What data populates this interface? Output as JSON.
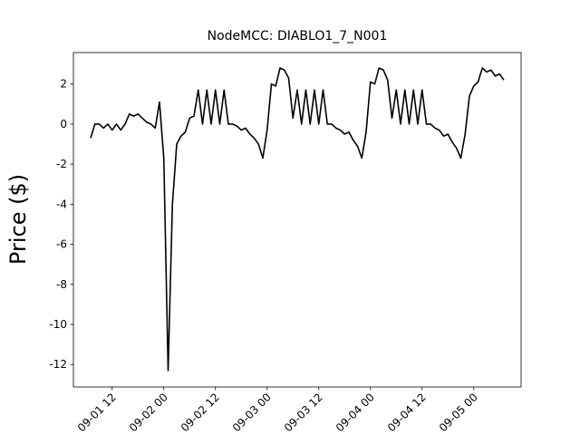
{
  "chart_data": {
    "type": "line",
    "title": "NodeMCC: DIABLO1_7_N001",
    "y_label": "Price ($)",
    "x": [
      "09-01 07",
      "09-01 08",
      "09-01 09",
      "09-01 10",
      "09-01 11",
      "09-01 12",
      "09-01 13",
      "09-01 14",
      "09-01 15",
      "09-01 16",
      "09-01 17",
      "09-01 18",
      "09-01 19",
      "09-01 20",
      "09-01 21",
      "09-01 22",
      "09-01 23",
      "09-02 00",
      "09-02 01",
      "09-02 02",
      "09-02 03",
      "09-02 04",
      "09-02 05",
      "09-02 06",
      "09-02 07",
      "09-02 08",
      "09-02 09",
      "09-02 10",
      "09-02 11",
      "09-02 12",
      "09-02 13",
      "09-02 14",
      "09-02 15",
      "09-02 16",
      "09-02 17",
      "09-02 18",
      "09-02 19",
      "09-02 20",
      "09-02 21",
      "09-02 22",
      "09-02 23",
      "09-03 00",
      "09-03 01",
      "09-03 02",
      "09-03 03",
      "09-03 04",
      "09-03 05",
      "09-03 06",
      "09-03 07",
      "09-03 08",
      "09-03 09",
      "09-03 10",
      "09-03 11",
      "09-03 12",
      "09-03 13",
      "09-03 14",
      "09-03 15",
      "09-03 16",
      "09-03 17",
      "09-03 18",
      "09-03 19",
      "09-03 20",
      "09-03 21",
      "09-03 22",
      "09-03 23",
      "09-04 00",
      "09-04 01",
      "09-04 02",
      "09-04 03",
      "09-04 04",
      "09-04 05",
      "09-04 06",
      "09-04 07",
      "09-04 08",
      "09-04 09",
      "09-04 10",
      "09-04 11",
      "09-04 12",
      "09-04 13",
      "09-04 14",
      "09-04 15",
      "09-04 16",
      "09-04 17",
      "09-04 18",
      "09-04 19",
      "09-04 20",
      "09-04 21",
      "09-04 22",
      "09-04 23",
      "09-05 00",
      "09-05 01",
      "09-05 02",
      "09-05 03",
      "09-05 04",
      "09-05 05",
      "09-05 06",
      "09-05 07"
    ],
    "series": [
      {
        "color": "#000000",
        "values": [
          -0.7,
          0,
          0,
          -0.2,
          0,
          -0.3,
          0,
          -0.3,
          0,
          0.5,
          0.4,
          0.5,
          0.3,
          0.1,
          0,
          -0.2,
          1.1,
          -1.7,
          -12.3,
          -4.0,
          -1.0,
          -0.6,
          -0.4,
          0.3,
          0.4,
          1.7,
          0,
          1.7,
          0,
          1.7,
          0,
          1.7,
          0,
          0,
          -0.1,
          -0.3,
          -0.2,
          -0.5,
          -0.7,
          -1.0,
          -1.7,
          -0.3,
          2.0,
          1.9,
          2.8,
          2.7,
          2.3,
          0.3,
          1.7,
          0,
          1.7,
          0,
          1.7,
          0,
          1.7,
          0,
          0,
          -0.2,
          -0.3,
          -0.5,
          -0.4,
          -0.8,
          -1.1,
          -1.7,
          -0.4,
          2.1,
          2.0,
          2.8,
          2.7,
          2.2,
          0.3,
          1.7,
          0,
          1.7,
          0,
          1.7,
          0,
          1.7,
          0,
          0,
          -0.2,
          -0.3,
          -0.6,
          -0.5,
          -0.9,
          -1.2,
          -1.7,
          -0.5,
          1.4,
          1.9,
          2.1,
          2.8,
          2.6,
          2.7,
          2.4,
          2.5,
          2.2
        ]
      }
    ],
    "xlim": [
      "09-01 03",
      "09-05 11"
    ],
    "xticks": [
      "09-01 12",
      "09-02 00",
      "09-02 12",
      "09-03 00",
      "09-03 12",
      "09-04 00",
      "09-04 12",
      "09-05 00"
    ],
    "ylim": [
      -13.12,
      3.57
    ],
    "yticks": [
      2,
      0,
      -2,
      -4,
      -6,
      -8,
      -10,
      -12
    ]
  }
}
